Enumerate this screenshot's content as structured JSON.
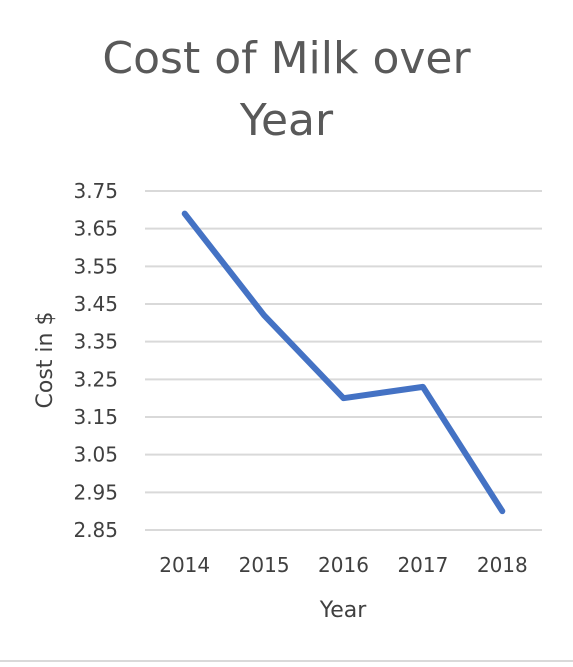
{
  "chart_data": {
    "type": "line",
    "title_lines": [
      "Cost of Milk over",
      "Year"
    ],
    "title": "Cost of Milk over Year",
    "xlabel": "Year",
    "ylabel": "Cost in $",
    "categories": [
      "2014",
      "2015",
      "2016",
      "2017",
      "2018"
    ],
    "series": [
      {
        "values": [
          3.69,
          3.42,
          3.2,
          3.23,
          2.9
        ]
      }
    ],
    "ylim": [
      2.85,
      3.75
    ],
    "yticks": [
      "3.75",
      "3.65",
      "3.55",
      "3.45",
      "3.35",
      "3.25",
      "3.15",
      "3.05",
      "2.95",
      "2.85"
    ],
    "grid": true,
    "legend": "none",
    "colors": {
      "line": "#4472C4",
      "grid": "#d9d9d9",
      "text": "#595959"
    }
  }
}
